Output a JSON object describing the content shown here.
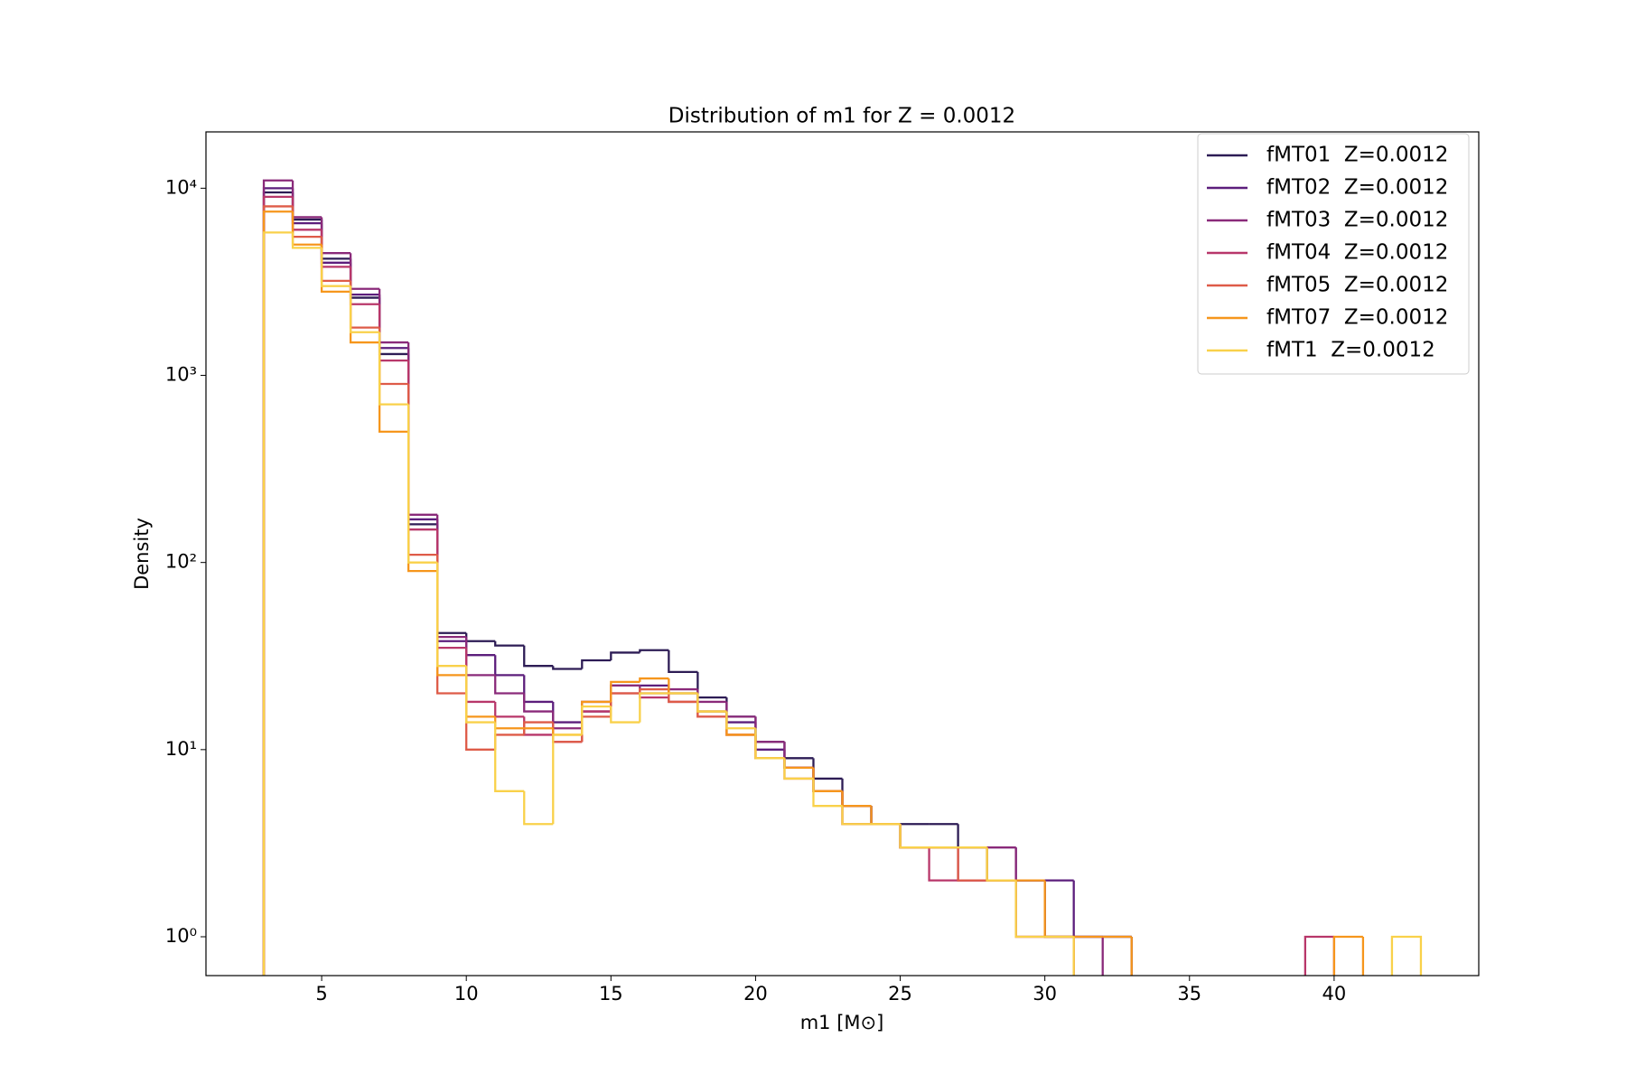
{
  "chart_data": {
    "type": "histogram",
    "title": "Distribution of m1 for Z = 0.0012",
    "xlabel": "m1 [M⊙]",
    "ylabel": "Density",
    "bins": [
      3,
      4,
      5,
      6,
      7,
      8,
      9,
      10,
      11,
      12,
      13,
      14,
      15,
      16,
      17,
      18,
      19,
      20,
      21,
      22,
      23,
      24,
      25,
      26,
      27,
      28,
      29,
      30,
      31,
      32,
      33,
      34,
      35,
      36,
      37,
      38,
      39,
      40,
      41,
      42,
      43
    ],
    "xlim": [
      1,
      45
    ],
    "xticks": [
      5,
      10,
      15,
      20,
      25,
      30,
      35,
      40
    ],
    "ylim": [
      0.62,
      20000
    ],
    "yscale": "log",
    "yticks": [
      {
        "value": 1,
        "label": "10⁰"
      },
      {
        "value": 10,
        "label": "10¹"
      },
      {
        "value": 100,
        "label": "10²"
      },
      {
        "value": 1000,
        "label": "10³"
      },
      {
        "value": 10000,
        "label": "10⁴"
      }
    ],
    "legend": "upper right",
    "series": [
      {
        "name": "fMT01  Z=0.0012",
        "color": "#2d1c55",
        "values": [
          9500,
          6800,
          4200,
          2600,
          1300,
          160,
          42,
          38,
          36,
          28,
          27,
          30,
          33,
          34,
          26,
          19,
          15,
          11,
          9,
          7,
          5,
          4,
          4,
          4,
          3,
          2,
          2,
          1,
          1,
          1,
          0,
          0,
          0,
          0,
          0,
          0,
          0,
          0,
          0,
          0
        ]
      },
      {
        "name": "fMT02  Z=0.0012",
        "color": "#5c1e7c",
        "values": [
          10000,
          6500,
          4000,
          2700,
          1400,
          170,
          38,
          32,
          25,
          18,
          14,
          16,
          22,
          22,
          20,
          16,
          14,
          10,
          8,
          6,
          5,
          4,
          3,
          3,
          3,
          3,
          2,
          2,
          1,
          1,
          0,
          0,
          0,
          0,
          0,
          0,
          0,
          0,
          0,
          0
        ]
      },
      {
        "name": "fMT03  Z=0.0012",
        "color": "#8a2a7a",
        "values": [
          11000,
          7000,
          4500,
          2900,
          1500,
          180,
          40,
          25,
          20,
          16,
          13,
          18,
          22,
          20,
          21,
          18,
          15,
          11,
          8,
          6,
          5,
          4,
          3,
          3,
          2,
          3,
          2,
          1,
          1,
          0,
          0,
          0,
          0,
          0,
          0,
          0,
          0,
          0,
          0,
          0
        ]
      },
      {
        "name": "fMT04  Z=0.0012",
        "color": "#b8376a",
        "values": [
          9000,
          6000,
          3800,
          2400,
          1200,
          150,
          35,
          18,
          15,
          12,
          11,
          16,
          20,
          19,
          18,
          15,
          12,
          9,
          8,
          6,
          4,
          4,
          3,
          2,
          2,
          2,
          1,
          1,
          0,
          0,
          0,
          0,
          0,
          0,
          0,
          0,
          1,
          0,
          0,
          0
        ]
      },
      {
        "name": "fMT05  Z=0.0012",
        "color": "#de5b48",
        "values": [
          8000,
          5500,
          3200,
          1800,
          900,
          110,
          20,
          10,
          12,
          14,
          11,
          15,
          20,
          21,
          18,
          15,
          12,
          9,
          7,
          6,
          4,
          4,
          3,
          3,
          2,
          2,
          1,
          1,
          0,
          0,
          0,
          0,
          0,
          0,
          0,
          0,
          0,
          0,
          0,
          0
        ]
      },
      {
        "name": "fMT07  Z=0.0012",
        "color": "#f6961c",
        "values": [
          7500,
          5000,
          2800,
          1500,
          500,
          90,
          25,
          15,
          13,
          13,
          12,
          18,
          23,
          24,
          20,
          16,
          12,
          9,
          8,
          6,
          5,
          4,
          3,
          3,
          3,
          2,
          2,
          1,
          1,
          1,
          0,
          0,
          0,
          0,
          0,
          0,
          0,
          1,
          0,
          0
        ]
      },
      {
        "name": "fMT1  Z=0.0012",
        "color": "#f9d14a",
        "values": [
          5800,
          4800,
          3000,
          1700,
          700,
          100,
          28,
          14,
          6,
          4,
          12,
          17,
          14,
          20,
          20,
          16,
          13,
          9,
          7,
          5,
          4,
          4,
          3,
          3,
          3,
          2,
          1,
          1,
          0,
          0,
          0,
          0,
          0,
          0,
          0,
          0,
          0,
          0,
          0,
          1
        ]
      }
    ]
  }
}
